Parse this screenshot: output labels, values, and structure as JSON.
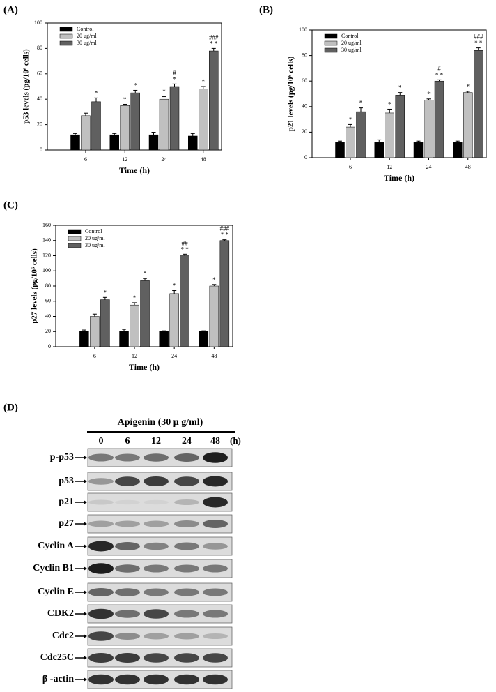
{
  "chart_data": [
    {
      "type": "bar",
      "panel": "(A)",
      "ylabel": "p53 levels (pg/10⁶ cells)",
      "xlabel": "Time (h)",
      "categories": [
        "6",
        "12",
        "24",
        "48"
      ],
      "series": [
        {
          "name": "Control",
          "color": "#000000",
          "values": [
            12,
            12,
            12,
            11
          ],
          "errors": [
            1,
            1,
            2,
            2
          ],
          "annotations": [
            null,
            null,
            null,
            null
          ]
        },
        {
          "name": "20 ug/ml",
          "color": "#c0c0c0",
          "values": [
            27,
            35,
            40,
            48
          ],
          "errors": [
            2,
            1,
            2,
            2
          ],
          "annotations": [
            null,
            [
              "*"
            ],
            [
              "*"
            ],
            [
              "*"
            ]
          ]
        },
        {
          "name": "30 ug/ml",
          "color": "#606060",
          "values": [
            38,
            45,
            50,
            78
          ],
          "errors": [
            3,
            2,
            2,
            2
          ],
          "annotations": [
            [
              "*"
            ],
            [
              "*"
            ],
            [
              "#",
              "*"
            ],
            [
              "###",
              "* *"
            ]
          ]
        }
      ],
      "ylim": [
        0,
        100
      ],
      "yticks": [
        0,
        20,
        40,
        60,
        80,
        100
      ],
      "legend": "upper-left"
    },
    {
      "type": "bar",
      "panel": "(B)",
      "ylabel": "p21 levels (pg/10⁶ cells)",
      "xlabel": "Time (h)",
      "categories": [
        "6",
        "12",
        "24",
        "48"
      ],
      "series": [
        {
          "name": "Control",
          "color": "#000000",
          "values": [
            12,
            12,
            12,
            12
          ],
          "errors": [
            1,
            2,
            1,
            1
          ],
          "annotations": [
            null,
            null,
            null,
            null
          ]
        },
        {
          "name": "20 ug/ml",
          "color": "#c0c0c0",
          "values": [
            24,
            35,
            45,
            51
          ],
          "errors": [
            2,
            3,
            1,
            1
          ],
          "annotations": [
            [
              "*"
            ],
            [
              "*"
            ],
            [
              "*"
            ],
            [
              "*"
            ]
          ]
        },
        {
          "name": "30 ug/ml",
          "color": "#606060",
          "values": [
            36,
            49,
            60,
            84
          ],
          "errors": [
            3,
            2,
            1,
            2
          ],
          "annotations": [
            [
              "*"
            ],
            [
              "*"
            ],
            [
              "#",
              "* *"
            ],
            [
              "###",
              "* *"
            ]
          ]
        }
      ],
      "ylim": [
        0,
        100
      ],
      "yticks": [
        0,
        20,
        40,
        60,
        80,
        100
      ],
      "legend": "upper-left"
    },
    {
      "type": "bar",
      "panel": "(C)",
      "ylabel": "p27 levels (pg/10⁶ cells)",
      "xlabel": "Time (h)",
      "categories": [
        "6",
        "12",
        "24",
        "48"
      ],
      "series": [
        {
          "name": "Control",
          "color": "#000000",
          "values": [
            20,
            20,
            20,
            20
          ],
          "errors": [
            2,
            3,
            1,
            1
          ],
          "annotations": [
            null,
            null,
            null,
            null
          ]
        },
        {
          "name": "20 ug/ml",
          "color": "#c0c0c0",
          "values": [
            40,
            55,
            70,
            80
          ],
          "errors": [
            3,
            3,
            4,
            2
          ],
          "annotations": [
            null,
            [
              "*"
            ],
            [
              "*"
            ],
            [
              "*"
            ]
          ]
        },
        {
          "name": "30 ug/ml",
          "color": "#606060",
          "values": [
            62,
            87,
            120,
            140
          ],
          "errors": [
            3,
            3,
            2,
            1
          ],
          "annotations": [
            [
              "*"
            ],
            [
              "*"
            ],
            [
              "##",
              "* *"
            ],
            [
              "###",
              "* *"
            ]
          ]
        }
      ],
      "ylim": [
        0,
        160
      ],
      "yticks": [
        0,
        20,
        40,
        60,
        80,
        100,
        120,
        140,
        160
      ],
      "legend": "upper-left"
    }
  ],
  "blot": {
    "panel": "(D)",
    "treatment": "Apigenin (30 μ g/ml)",
    "lanes": [
      "0",
      "6",
      "12",
      "24",
      "48"
    ],
    "unit": "(h)",
    "rows": [
      {
        "label": "p-p53",
        "bands": [
          0.5,
          0.5,
          0.55,
          0.6,
          0.95
        ]
      },
      {
        "label": "p53",
        "bands": [
          0.35,
          0.75,
          0.8,
          0.75,
          0.9
        ]
      },
      {
        "label": "p21",
        "bands": [
          0.1,
          0.05,
          0.05,
          0.2,
          0.9
        ]
      },
      {
        "label": "p27",
        "bands": [
          0.3,
          0.3,
          0.3,
          0.4,
          0.6
        ]
      },
      {
        "label": "Cyclin A",
        "bands": [
          0.9,
          0.6,
          0.45,
          0.5,
          0.35
        ]
      },
      {
        "label": "Cyclin B1",
        "bands": [
          0.95,
          0.55,
          0.5,
          0.5,
          0.5
        ]
      },
      {
        "label": "Cyclin E",
        "bands": [
          0.6,
          0.55,
          0.5,
          0.5,
          0.5
        ]
      },
      {
        "label": "CDK2",
        "bands": [
          0.85,
          0.55,
          0.75,
          0.5,
          0.5
        ]
      },
      {
        "label": "Cdc2",
        "bands": [
          0.75,
          0.4,
          0.3,
          0.3,
          0.2
        ]
      },
      {
        "label": "Cdc25C",
        "bands": [
          0.8,
          0.8,
          0.75,
          0.75,
          0.75
        ]
      },
      {
        "label": "β -actin",
        "bands": [
          0.85,
          0.85,
          0.85,
          0.85,
          0.85
        ]
      }
    ]
  }
}
